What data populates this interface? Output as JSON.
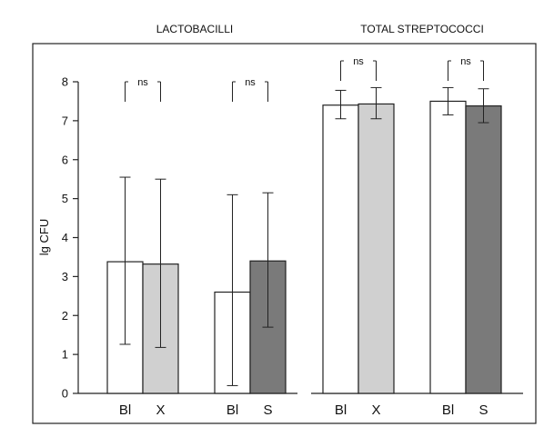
{
  "chart_data": {
    "type": "bar",
    "ylabel": "lg CFU",
    "ylim": [
      0,
      8
    ],
    "yticks": [
      0,
      1,
      2,
      3,
      4,
      5,
      6,
      7,
      8
    ],
    "grid": false,
    "panels": [
      {
        "title": "LACTOBACILLI",
        "groups": [
          {
            "significance": "ns",
            "bars": [
              {
                "label": "Bl",
                "value": 3.38,
                "err_low": 1.26,
                "err_high": 5.55,
                "color": "#ffffff"
              },
              {
                "label": "X",
                "value": 3.32,
                "err_low": 1.18,
                "err_high": 5.5,
                "color": "#d0d0d0"
              }
            ]
          },
          {
            "significance": "ns",
            "bars": [
              {
                "label": "Bl",
                "value": 2.6,
                "err_low": 0.2,
                "err_high": 5.1,
                "color": "#ffffff"
              },
              {
                "label": "S",
                "value": 3.4,
                "err_low": 1.7,
                "err_high": 5.15,
                "color": "#7a7a7a"
              }
            ]
          }
        ]
      },
      {
        "title": "TOTAL STREPTOCOCCI",
        "groups": [
          {
            "significance": "ns",
            "bars": [
              {
                "label": "Bl",
                "value": 7.4,
                "err_low": 7.05,
                "err_high": 7.78,
                "color": "#ffffff"
              },
              {
                "label": "X",
                "value": 7.43,
                "err_low": 7.05,
                "err_high": 7.85,
                "color": "#d0d0d0"
              }
            ]
          },
          {
            "significance": "ns",
            "bars": [
              {
                "label": "Bl",
                "value": 7.5,
                "err_low": 7.15,
                "err_high": 7.85,
                "color": "#ffffff"
              },
              {
                "label": "S",
                "value": 7.38,
                "err_low": 6.95,
                "err_high": 7.82,
                "color": "#7a7a7a"
              }
            ]
          }
        ]
      }
    ]
  }
}
